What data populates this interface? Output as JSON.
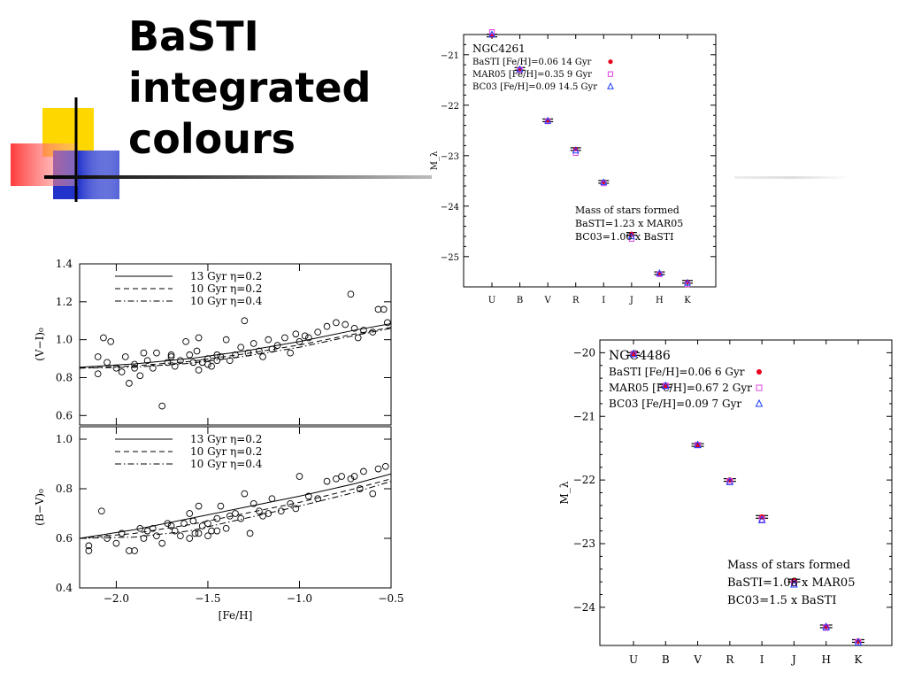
{
  "slide": {
    "title_lines": [
      "BaSTI",
      "integrated",
      "colours"
    ]
  },
  "chart_data": [
    {
      "type": "scatter",
      "title": "NGC4261",
      "xlabel": "",
      "ylabel": "M_λ",
      "categories": [
        "U",
        "B",
        "V",
        "R",
        "I",
        "J",
        "H",
        "K"
      ],
      "ylim": [
        -20.6,
        -25.6
      ],
      "yticks": [
        -21,
        -22,
        -23,
        -24,
        -25
      ],
      "series": [
        {
          "name": "BaSTI [Fe/H]=0.06 14 Gyr",
          "color": "#e8001c",
          "marker": "filled-circle",
          "values": [
            -20.62,
            -21.28,
            -22.3,
            -22.87,
            -23.52,
            -24.55,
            -25.33,
            -25.5
          ]
        },
        {
          "name": "MAR05 [Fe/H]=0.35 9 Gyr",
          "color": "#e040e0",
          "marker": "open-square",
          "values": [
            -20.55,
            -21.3,
            -22.32,
            -22.95,
            -23.55,
            -24.65,
            -25.35,
            -25.55
          ]
        },
        {
          "name": "BC03 [Fe/H]=0.09 14.5 Gyr",
          "color": "#1a3cff",
          "marker": "open-triangle",
          "values": [
            -20.6,
            -21.29,
            -22.31,
            -22.9,
            -23.53,
            -24.6,
            -25.33,
            -25.52
          ]
        }
      ],
      "annotation": [
        "Mass of stars formed",
        "BaSTI=1.23 x MAR05",
        "BC03=1.06 x BaSTI"
      ]
    },
    {
      "type": "scatter",
      "title": "NGC4486",
      "xlabel": "",
      "ylabel": "M_λ",
      "categories": [
        "U",
        "B",
        "V",
        "R",
        "I",
        "J",
        "H",
        "K"
      ],
      "ylim": [
        -19.8,
        -24.6
      ],
      "yticks": [
        -20,
        -21,
        -22,
        -23,
        -24
      ],
      "series": [
        {
          "name": "BaSTI [Fe/H]=0.06 6 Gyr",
          "color": "#e8001c",
          "marker": "filled-circle",
          "values": [
            -20.02,
            -20.52,
            -21.45,
            -22.0,
            -22.58,
            -23.58,
            -24.3,
            -24.53
          ]
        },
        {
          "name": "MAR05 [Fe/H]=0.67 2 Gyr",
          "color": "#e040e0",
          "marker": "open-square",
          "values": [
            -20.02,
            -20.52,
            -21.45,
            -22.02,
            -22.62,
            -23.62,
            -24.32,
            -24.55
          ]
        },
        {
          "name": "BC03 [Fe/H]=0.09 7 Gyr",
          "color": "#1a3cff",
          "marker": "open-triangle",
          "values": [
            -20.02,
            -20.52,
            -21.45,
            -22.03,
            -22.63,
            -23.64,
            -24.31,
            -24.55
          ]
        }
      ],
      "annotation": [
        "Mass of stars formed",
        "BaSTI=1.08 x MAR05",
        "BC03=1.5 x BaSTI"
      ]
    },
    {
      "type": "scatter",
      "xlabel": "",
      "ylabel": "(V−I)₀",
      "xlim": [
        -2.2,
        -0.5
      ],
      "ylim": [
        0.55,
        1.4
      ],
      "yticks": [
        0.6,
        0.8,
        1.0,
        1.2,
        1.4
      ],
      "xticks": [
        -2.0,
        -1.5,
        -1.0,
        -0.5
      ],
      "points": [
        [
          -2.1,
          0.91
        ],
        [
          -2.07,
          1.01
        ],
        [
          -2.05,
          0.88
        ],
        [
          -2.03,
          0.99
        ],
        [
          -2.0,
          0.85
        ],
        [
          -1.97,
          0.83
        ],
        [
          -1.95,
          0.91
        ],
        [
          -1.93,
          0.77
        ],
        [
          -1.9,
          0.87
        ],
        [
          -1.87,
          0.81
        ],
        [
          -1.85,
          0.93
        ],
        [
          -1.83,
          0.89
        ],
        [
          -1.8,
          0.85
        ],
        [
          -1.78,
          0.93
        ],
        [
          -1.75,
          0.65
        ],
        [
          -1.72,
          0.88
        ],
        [
          -1.7,
          0.92
        ],
        [
          -1.68,
          0.86
        ],
        [
          -1.65,
          0.89
        ],
        [
          -1.62,
          0.99
        ],
        [
          -1.6,
          0.92
        ],
        [
          -1.58,
          0.88
        ],
        [
          -1.56,
          0.94
        ],
        [
          -1.55,
          1.01
        ],
        [
          -1.53,
          0.88
        ],
        [
          -1.5,
          0.9
        ],
        [
          -1.48,
          0.86
        ],
        [
          -1.45,
          0.92
        ],
        [
          -1.43,
          0.91
        ],
        [
          -1.4,
          1.0
        ],
        [
          -1.38,
          0.89
        ],
        [
          -1.35,
          0.92
        ],
        [
          -1.32,
          0.96
        ],
        [
          -1.3,
          1.1
        ],
        [
          -1.28,
          0.93
        ],
        [
          -1.25,
          0.98
        ],
        [
          -1.22,
          0.94
        ],
        [
          -1.2,
          0.91
        ],
        [
          -1.17,
          1.0
        ],
        [
          -1.15,
          0.95
        ],
        [
          -1.12,
          0.97
        ],
        [
          -1.08,
          1.01
        ],
        [
          -1.05,
          0.93
        ],
        [
          -1.02,
          1.03
        ],
        [
          -1.0,
          0.99
        ],
        [
          -0.97,
          1.02
        ],
        [
          -0.95,
          1.01
        ],
        [
          -0.9,
          1.04
        ],
        [
          -0.85,
          1.07
        ],
        [
          -0.8,
          1.09
        ],
        [
          -0.75,
          1.08
        ],
        [
          -0.72,
          1.24
        ],
        [
          -0.7,
          1.06
        ],
        [
          -0.68,
          1.01
        ],
        [
          -0.65,
          1.05
        ],
        [
          -0.6,
          1.04
        ],
        [
          -0.57,
          1.16
        ],
        [
          -0.54,
          1.16
        ],
        [
          -0.52,
          1.09
        ],
        [
          -2.1,
          0.82
        ],
        [
          -1.9,
          0.85
        ],
        [
          -1.7,
          0.91
        ],
        [
          -1.5,
          0.87
        ],
        [
          -1.45,
          0.89
        ],
        [
          -1.55,
          0.84
        ]
      ],
      "lines": [
        {
          "name": "13 Gyr η=0.2",
          "style": "solid",
          "x": [
            -2.2,
            -1.9,
            -1.6,
            -1.3,
            -1.0,
            -0.7,
            -0.5
          ],
          "y": [
            0.855,
            0.872,
            0.9,
            0.94,
            0.99,
            1.05,
            1.085
          ]
        },
        {
          "name": "10 Gyr η=0.2",
          "style": "dashed",
          "x": [
            -2.2,
            -1.9,
            -1.6,
            -1.3,
            -1.0,
            -0.7,
            -0.5
          ],
          "y": [
            0.85,
            0.862,
            0.885,
            0.925,
            0.972,
            1.03,
            1.065
          ]
        },
        {
          "name": "10 Gyr η=0.4",
          "style": "dashdot",
          "x": [
            -2.2,
            -1.9,
            -1.6,
            -1.3,
            -1.0,
            -0.7,
            -0.5
          ],
          "y": [
            0.85,
            0.855,
            0.875,
            0.912,
            0.96,
            1.022,
            1.06
          ]
        }
      ]
    },
    {
      "type": "scatter",
      "xlabel": "[Fe/H]",
      "ylabel": "(B−V)₀",
      "xlim": [
        -2.2,
        -0.5
      ],
      "ylim": [
        0.4,
        1.05
      ],
      "yticks": [
        0.4,
        0.6,
        0.8,
        1.0
      ],
      "xticks": [
        -2.0,
        -1.5,
        -1.0,
        -0.5
      ],
      "xticklabels": [
        "−2.0",
        "−1.5",
        "−1.0",
        "−0.5"
      ],
      "points": [
        [
          -2.15,
          0.57
        ],
        [
          -2.15,
          0.55
        ],
        [
          -2.08,
          0.71
        ],
        [
          -2.05,
          0.6
        ],
        [
          -2.0,
          0.58
        ],
        [
          -1.97,
          0.62
        ],
        [
          -1.93,
          0.55
        ],
        [
          -1.9,
          0.55
        ],
        [
          -1.87,
          0.64
        ],
        [
          -1.85,
          0.6
        ],
        [
          -1.83,
          0.63
        ],
        [
          -1.8,
          0.64
        ],
        [
          -1.78,
          0.61
        ],
        [
          -1.75,
          0.58
        ],
        [
          -1.72,
          0.66
        ],
        [
          -1.7,
          0.65
        ],
        [
          -1.68,
          0.63
        ],
        [
          -1.65,
          0.61
        ],
        [
          -1.63,
          0.66
        ],
        [
          -1.6,
          0.7
        ],
        [
          -1.58,
          0.67
        ],
        [
          -1.57,
          0.62
        ],
        [
          -1.55,
          0.73
        ],
        [
          -1.53,
          0.65
        ],
        [
          -1.5,
          0.66
        ],
        [
          -1.48,
          0.63
        ],
        [
          -1.45,
          0.68
        ],
        [
          -1.43,
          0.73
        ],
        [
          -1.4,
          0.64
        ],
        [
          -1.38,
          0.69
        ],
        [
          -1.35,
          0.7
        ],
        [
          -1.32,
          0.68
        ],
        [
          -1.3,
          0.78
        ],
        [
          -1.27,
          0.62
        ],
        [
          -1.25,
          0.74
        ],
        [
          -1.22,
          0.71
        ],
        [
          -1.2,
          0.69
        ],
        [
          -1.17,
          0.7
        ],
        [
          -1.15,
          0.76
        ],
        [
          -1.1,
          0.71
        ],
        [
          -1.05,
          0.74
        ],
        [
          -1.02,
          0.72
        ],
        [
          -1.0,
          0.85
        ],
        [
          -0.95,
          0.77
        ],
        [
          -0.9,
          0.76
        ],
        [
          -0.85,
          0.83
        ],
        [
          -0.8,
          0.84
        ],
        [
          -0.77,
          0.85
        ],
        [
          -0.72,
          0.84
        ],
        [
          -0.7,
          0.85
        ],
        [
          -0.67,
          0.8
        ],
        [
          -0.65,
          0.87
        ],
        [
          -0.6,
          0.78
        ],
        [
          -0.57,
          0.88
        ],
        [
          -0.53,
          0.89
        ],
        [
          -1.6,
          0.6
        ],
        [
          -1.5,
          0.61
        ],
        [
          -1.45,
          0.63
        ],
        [
          -1.55,
          0.62
        ]
      ],
      "lines": [
        {
          "name": "13 Gyr η=0.2",
          "style": "solid",
          "x": [
            -2.2,
            -1.9,
            -1.6,
            -1.3,
            -1.0,
            -0.7,
            -0.5
          ],
          "y": [
            0.6,
            0.635,
            0.68,
            0.725,
            0.77,
            0.82,
            0.86
          ]
        },
        {
          "name": "10 Gyr η=0.2",
          "style": "dashed",
          "x": [
            -2.2,
            -1.9,
            -1.6,
            -1.3,
            -1.0,
            -0.7,
            -0.5
          ],
          "y": [
            0.6,
            0.62,
            0.655,
            0.7,
            0.745,
            0.8,
            0.84
          ]
        },
        {
          "name": "10 Gyr η=0.4",
          "style": "dashdot",
          "x": [
            -2.2,
            -1.9,
            -1.6,
            -1.3,
            -1.0,
            -0.7,
            -0.5
          ],
          "y": [
            0.6,
            0.605,
            0.63,
            0.68,
            0.73,
            0.785,
            0.83
          ]
        }
      ]
    }
  ]
}
